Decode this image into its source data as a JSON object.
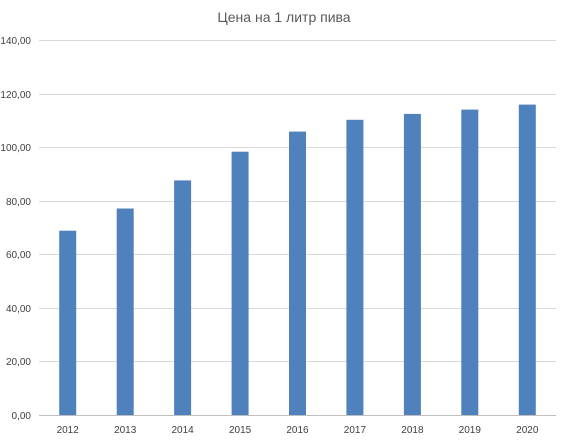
{
  "chart_data": {
    "type": "bar",
    "title": "Цена на 1 литр пива",
    "xlabel": "",
    "ylabel": "",
    "categories": [
      "2012",
      "2013",
      "2014",
      "2015",
      "2016",
      "2017",
      "2018",
      "2019",
      "2020"
    ],
    "values": [
      68.8,
      77.1,
      87.6,
      98.3,
      105.8,
      110.2,
      112.4,
      114.0,
      115.9
    ],
    "ylim": [
      0,
      140
    ],
    "y_ticks": [
      0,
      20,
      40,
      60,
      80,
      100,
      120,
      140
    ],
    "y_tick_labels": [
      "0,00",
      "20,00",
      "40,00",
      "60,00",
      "80,00",
      "100,00",
      "120,00",
      "140,00"
    ],
    "grid": true,
    "legend": "none",
    "bar_color": "#4f81bd"
  }
}
